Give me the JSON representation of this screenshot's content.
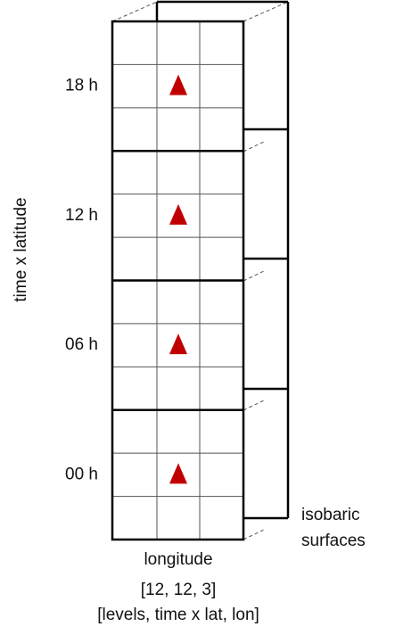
{
  "time_labels": [
    "18 h",
    "12 h",
    "06 h",
    "00 h"
  ],
  "y_axis_label": "time x latitude",
  "x_axis_label": "longitude",
  "side_label": [
    "isobaric",
    "surfaces"
  ],
  "shape": "[12, 12, 3]",
  "shape_legend": "[levels, time x lat, lon]"
}
